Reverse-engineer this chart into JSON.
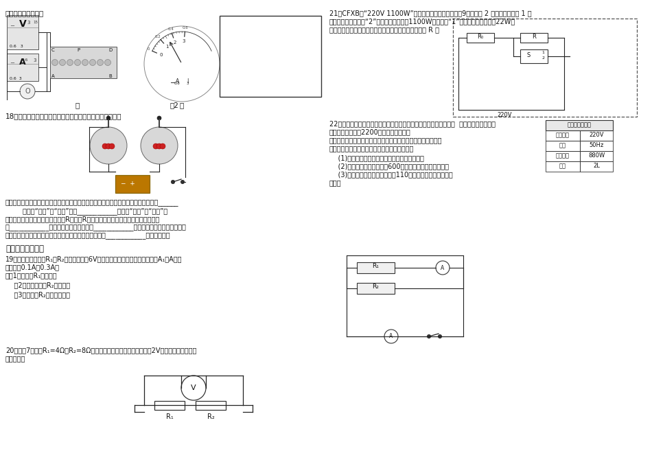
{
  "bg": "#ffffff",
  "top_left": "电流表指针的位置。",
  "q18_title": "18、在研究通电导体放出的热量跟哪些因素有关的实验中，",
  "q18_l1": "如图是小明探究电流产生的热量与哪些因素有关的装置：在两个相同的烧瓶中装有质量______",
  "q18_l2": "        （选填“相等”或“不等”）的____________（选填“同种”或“不同”）",
  "q18_l3": "液体，瓶中各放置一根电阾丝，且R甲大于R乙，这样的装置可以研究电流产生的热量",
  "q18_l4": "与____________的关系；实验中通过观察____________来比较电阾丝发热量的多少；",
  "q18_l5": "如果所用液体仅水或煎油，为使实验现象明显些，应选择____________来进行实验，",
  "q19_section": "四、计算或探究题",
  "q19_l1": "19、电路图中，电阾R₁和R₂并联后，接到6V的电源上。若开关闭合后，电流表A₁、A的示",
  "q19_l2": "数分别为0.1A和0.3A，",
  "q19_a1": "求（1）：电阾R₁的阾値；",
  "q19_a2": "    （2）：通过电阾R₂的电流；",
  "q19_a3": "    （3）：电阾R₂的发热功率？",
  "q20_l1": "20、如图7所示，R₁=4Ω，R₂=8Ω，接在电源上时，电压表的示数为2V，求电路消耗的总功",
  "q20_l2": "率是多少？",
  "q21_l1": "21、CFXB型“220V 1100W”电饭堡有两档开关，如右图9所示。档 2 是高温烧煮；档 1 是",
  "q21_l2": "簗饭、保温。当接档“2”时，电路的功率为1100W；当接档“1”时，电路的总功率为22W。",
  "q21_l3": "（虚线框内为电饭堡的简易原理示意图）求：串联电阾 R 的",
  "q22_l1": "22、随着生活水平的提高，家用电器在日常生活中已不可缺少。小明  家所有家用电器正常",
  "q22_l2": "工作时的总功率为2200瓦，其中电热水壶",
  "q22_l3": "的铭牌如图所示，某一天小明在家里用电热水壶烧开水，电热水",
  "q22_l4": "壶能正常工作。已知电热水壶的阾値不变，求：",
  "q22_a1": "    (1)这个电热水壶正常工作时的电阾为多少欧？",
  "q22_a2": "    (2)这个电热水壶正常工作600秒所消耗的电能为多少焦？",
  "q22_a3": "    (3)若电热水壶实际工作电压为110伏，电热水壶的实际功率",
  "q22_l5": "多大？",
  "tbl_hdr": "电热水壶的铭牌",
  "tbl_rows": [
    [
      "额定电压",
      "220V"
    ],
    [
      "频率",
      "50Hz"
    ],
    [
      "额定功率",
      "880W"
    ],
    [
      "容积",
      "2L"
    ]
  ]
}
